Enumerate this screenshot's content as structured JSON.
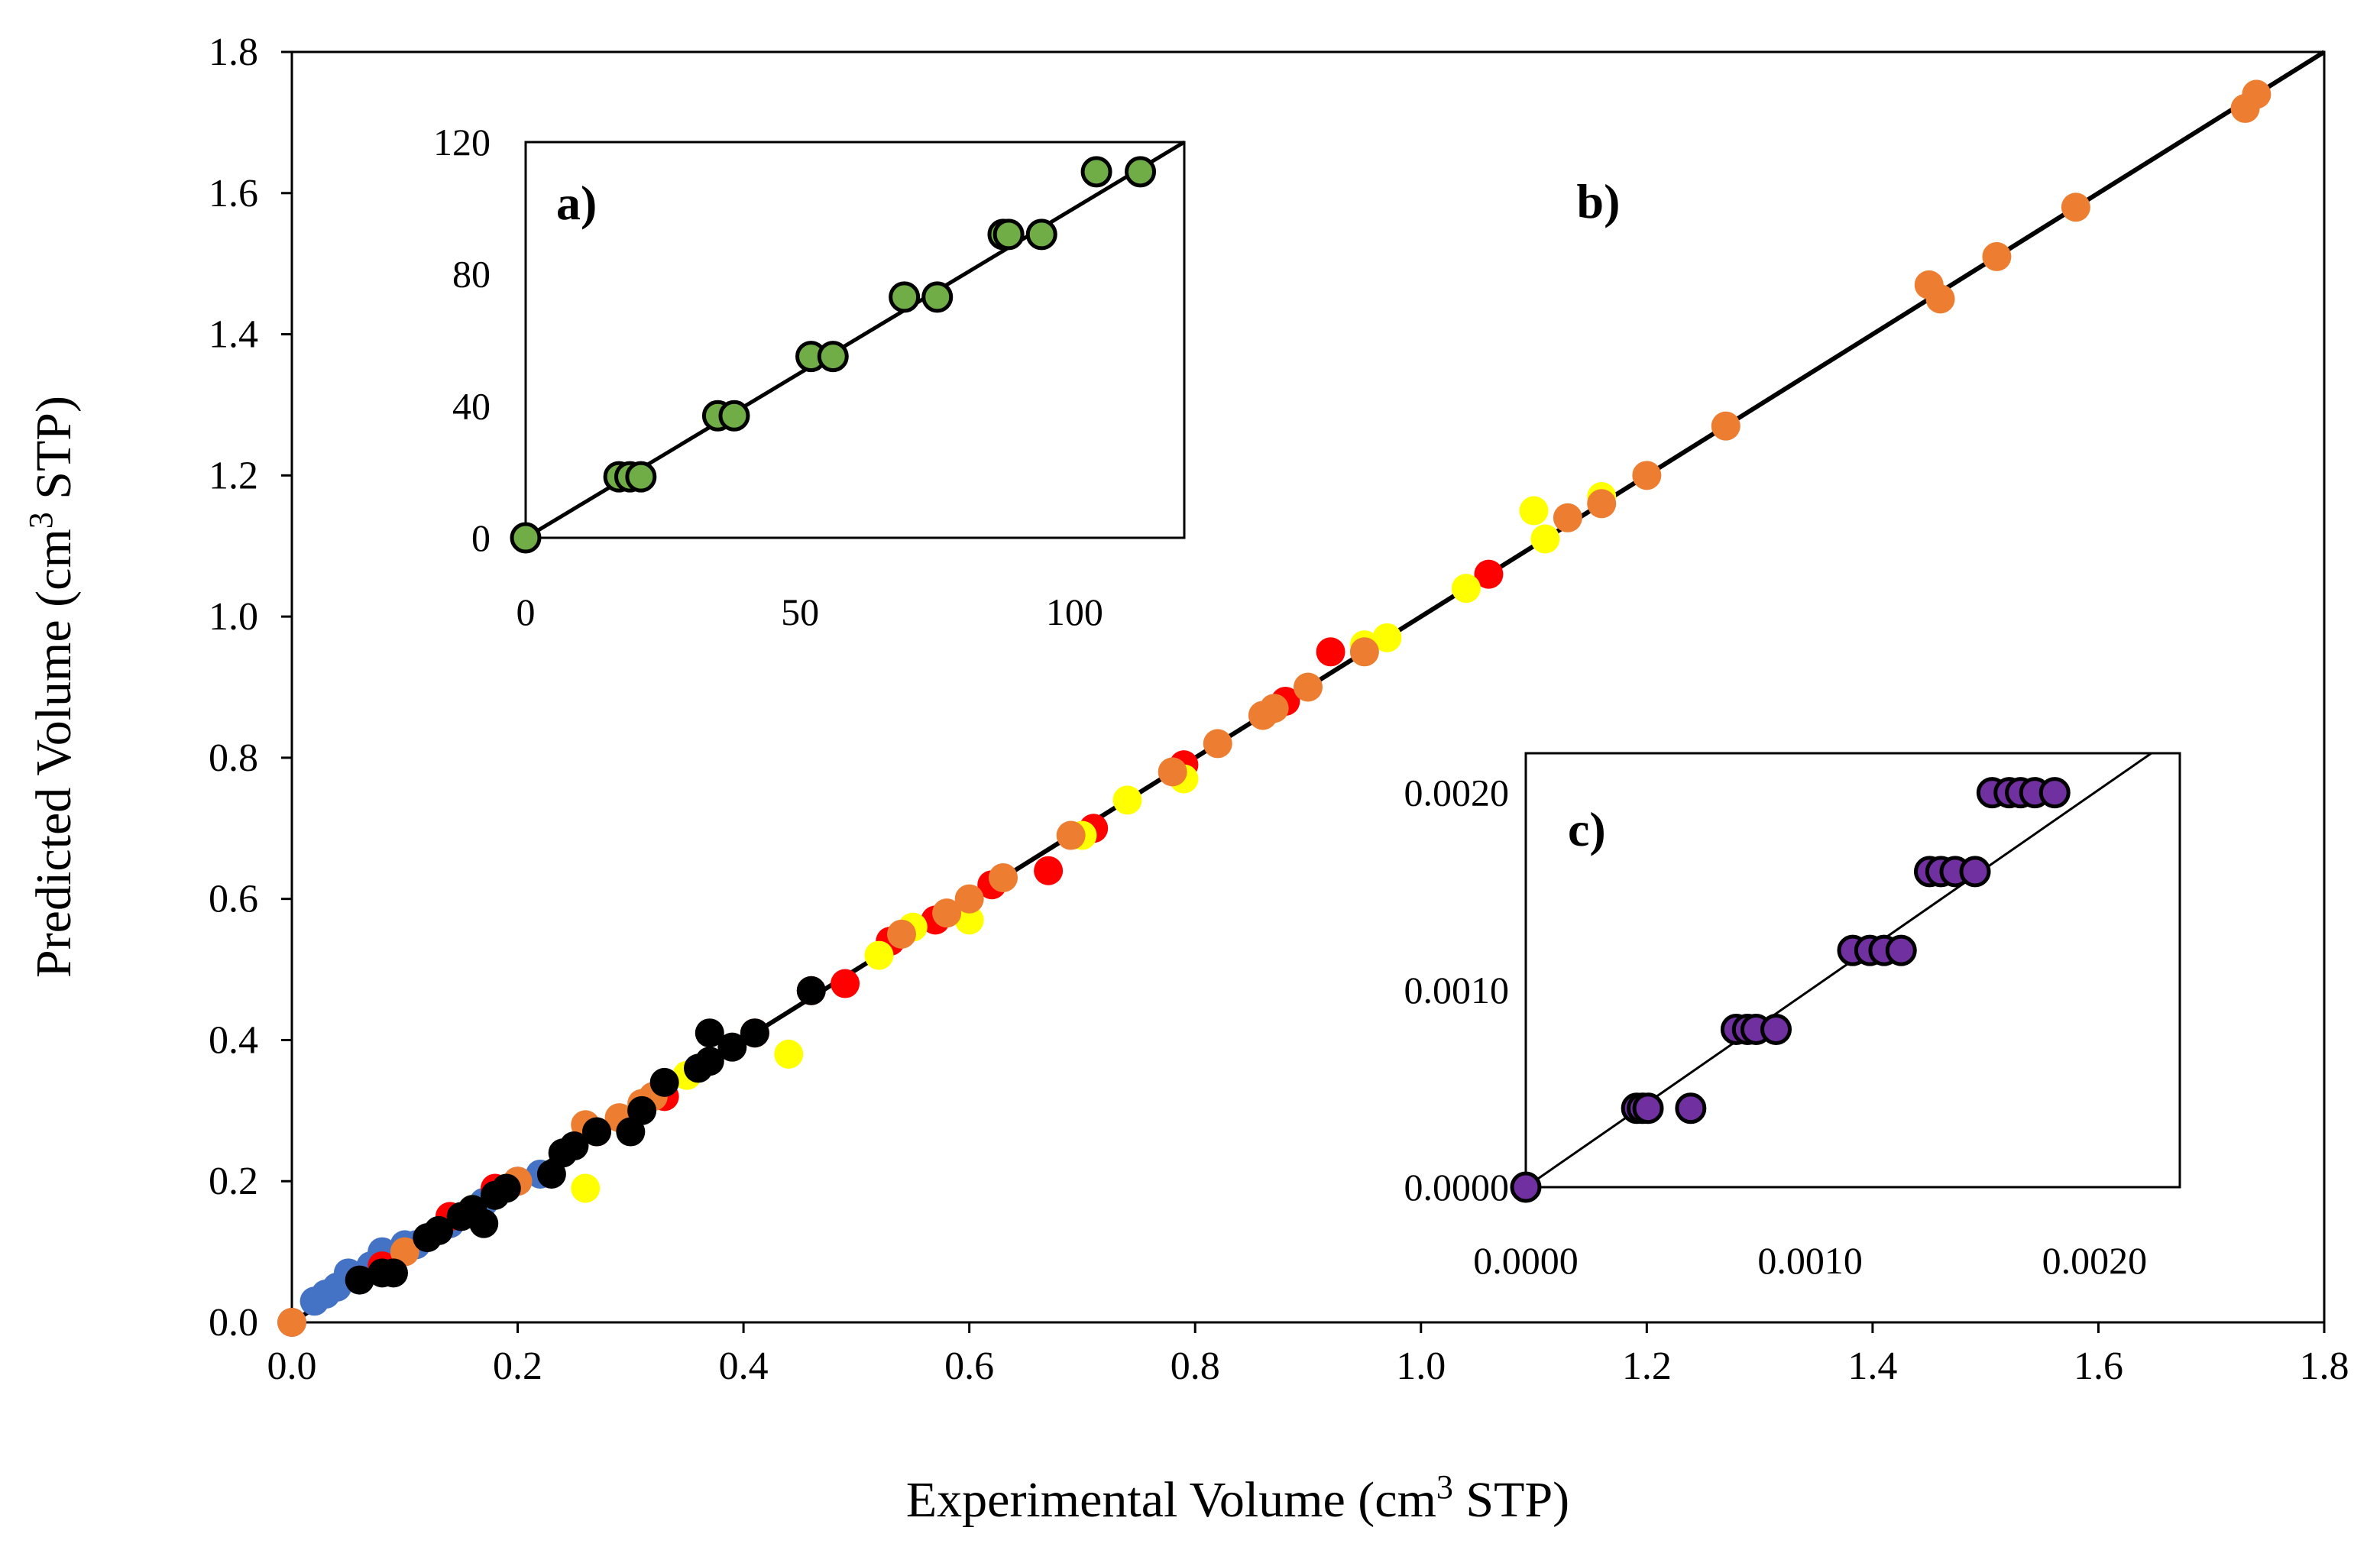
{
  "chart_data": [
    {
      "id": "main",
      "type": "scatter",
      "panel_label": "b)",
      "xlabel_prefix": "Experimental Volume (cm",
      "xlabel_sup": "3",
      "xlabel_suffix": " STP)",
      "ylabel_prefix": "Predicted Volume (cm",
      "ylabel_sup": "3",
      "ylabel_suffix": " STP)",
      "xlim": [
        0,
        1.8
      ],
      "ylim": [
        0,
        1.8
      ],
      "xticks": [
        "0.0",
        "0.2",
        "0.4",
        "0.6",
        "0.8",
        "1.0",
        "1.2",
        "1.4",
        "1.6",
        "1.8"
      ],
      "yticks": [
        "0.0",
        "0.2",
        "0.4",
        "0.6",
        "0.8",
        "1.0",
        "1.2",
        "1.4",
        "1.6",
        "1.8"
      ],
      "reference_line": "y = x",
      "series": [
        {
          "name": "blue",
          "color": "#4472c4",
          "points": [
            [
              0.0,
              0.0
            ],
            [
              0.02,
              0.03
            ],
            [
              0.03,
              0.04
            ],
            [
              0.04,
              0.05
            ],
            [
              0.05,
              0.07
            ],
            [
              0.06,
              0.06
            ],
            [
              0.07,
              0.08
            ],
            [
              0.08,
              0.1
            ],
            [
              0.09,
              0.09
            ],
            [
              0.1,
              0.11
            ],
            [
              0.11,
              0.11
            ],
            [
              0.12,
              0.12
            ],
            [
              0.14,
              0.14
            ],
            [
              0.17,
              0.17
            ],
            [
              0.2,
              0.2
            ],
            [
              0.22,
              0.21
            ]
          ]
        },
        {
          "name": "red",
          "color": "#ff0000",
          "points": [
            [
              0.08,
              0.08
            ],
            [
              0.14,
              0.15
            ],
            [
              0.18,
              0.19
            ],
            [
              0.27,
              0.27
            ],
            [
              0.33,
              0.32
            ],
            [
              0.41,
              0.41
            ],
            [
              0.46,
              0.47
            ],
            [
              0.49,
              0.48
            ],
            [
              0.53,
              0.54
            ],
            [
              0.57,
              0.57
            ],
            [
              0.62,
              0.62
            ],
            [
              0.67,
              0.64
            ],
            [
              0.71,
              0.7
            ],
            [
              0.79,
              0.79
            ],
            [
              0.88,
              0.88
            ],
            [
              0.92,
              0.95
            ],
            [
              1.06,
              1.06
            ]
          ]
        },
        {
          "name": "yellow",
          "color": "#ffff00",
          "points": [
            [
              0.16,
              0.16
            ],
            [
              0.26,
              0.19
            ],
            [
              0.35,
              0.35
            ],
            [
              0.44,
              0.38
            ],
            [
              0.52,
              0.52
            ],
            [
              0.55,
              0.56
            ],
            [
              0.6,
              0.57
            ],
            [
              0.7,
              0.69
            ],
            [
              0.74,
              0.74
            ],
            [
              0.79,
              0.77
            ],
            [
              0.95,
              0.96
            ],
            [
              0.97,
              0.97
            ],
            [
              1.04,
              1.04
            ],
            [
              1.1,
              1.15
            ],
            [
              1.11,
              1.11
            ],
            [
              1.16,
              1.17
            ]
          ]
        },
        {
          "name": "orange",
          "color": "#ed7d31",
          "points": [
            [
              0.0,
              0.0
            ],
            [
              0.1,
              0.1
            ],
            [
              0.2,
              0.2
            ],
            [
              0.26,
              0.28
            ],
            [
              0.29,
              0.29
            ],
            [
              0.31,
              0.31
            ],
            [
              0.32,
              0.32
            ],
            [
              0.41,
              0.41
            ],
            [
              0.54,
              0.55
            ],
            [
              0.58,
              0.58
            ],
            [
              0.6,
              0.6
            ],
            [
              0.63,
              0.63
            ],
            [
              0.69,
              0.69
            ],
            [
              0.78,
              0.78
            ],
            [
              0.82,
              0.82
            ],
            [
              0.86,
              0.86
            ],
            [
              0.87,
              0.87
            ],
            [
              0.9,
              0.9
            ],
            [
              0.95,
              0.95
            ],
            [
              1.13,
              1.14
            ],
            [
              1.16,
              1.16
            ],
            [
              1.2,
              1.2
            ],
            [
              1.27,
              1.27
            ],
            [
              1.45,
              1.47
            ],
            [
              1.46,
              1.45
            ],
            [
              1.51,
              1.51
            ],
            [
              1.58,
              1.58
            ],
            [
              1.73,
              1.72
            ],
            [
              1.74,
              1.74
            ]
          ]
        },
        {
          "name": "black",
          "color": "#000000",
          "points": [
            [
              0.06,
              0.06
            ],
            [
              0.08,
              0.07
            ],
            [
              0.09,
              0.07
            ],
            [
              0.12,
              0.12
            ],
            [
              0.13,
              0.13
            ],
            [
              0.15,
              0.15
            ],
            [
              0.16,
              0.16
            ],
            [
              0.17,
              0.14
            ],
            [
              0.18,
              0.18
            ],
            [
              0.19,
              0.19
            ],
            [
              0.23,
              0.21
            ],
            [
              0.24,
              0.24
            ],
            [
              0.25,
              0.25
            ],
            [
              0.27,
              0.27
            ],
            [
              0.3,
              0.27
            ],
            [
              0.31,
              0.3
            ],
            [
              0.33,
              0.34
            ],
            [
              0.36,
              0.36
            ],
            [
              0.37,
              0.37
            ],
            [
              0.37,
              0.41
            ],
            [
              0.39,
              0.39
            ],
            [
              0.41,
              0.41
            ],
            [
              0.46,
              0.47
            ]
          ]
        }
      ]
    },
    {
      "id": "inset-a",
      "type": "scatter",
      "panel_label": "a)",
      "xlim": [
        0,
        120
      ],
      "ylim": [
        0,
        120
      ],
      "xticks": [
        "0",
        "50",
        "100"
      ],
      "yticks": [
        "0",
        "40",
        "80",
        "120"
      ],
      "reference_line": "y = x",
      "series": [
        {
          "name": "green",
          "color": "#70ad47",
          "points": [
            [
              0,
              0
            ],
            [
              17,
              18.5
            ],
            [
              19,
              18.5
            ],
            [
              21,
              18.5
            ],
            [
              35,
              37
            ],
            [
              38,
              37
            ],
            [
              52,
              55
            ],
            [
              56,
              55
            ],
            [
              69,
              73
            ],
            [
              75,
              73
            ],
            [
              87,
              92
            ],
            [
              88,
              92
            ],
            [
              94,
              92
            ],
            [
              104,
              111
            ],
            [
              112,
              111
            ]
          ]
        }
      ]
    },
    {
      "id": "inset-c",
      "type": "scatter",
      "panel_label": "c)",
      "xlim": [
        0,
        0.0023
      ],
      "ylim": [
        0,
        0.0022
      ],
      "xticks": [
        "0.0000",
        "0.0010",
        "0.0020"
      ],
      "yticks": [
        "0.0000",
        "0.0010",
        "0.0020"
      ],
      "reference_line": "y = x",
      "series": [
        {
          "name": "purple",
          "color": "#7030a0",
          "points": [
            [
              0.0,
              0.0
            ],
            [
              0.00039,
              0.0004
            ],
            [
              0.00041,
              0.0004
            ],
            [
              0.00043,
              0.0004
            ],
            [
              0.00058,
              0.0004
            ],
            [
              0.00074,
              0.0008
            ],
            [
              0.00078,
              0.0008
            ],
            [
              0.00081,
              0.0008
            ],
            [
              0.00088,
              0.0008
            ],
            [
              0.00115,
              0.0012
            ],
            [
              0.00121,
              0.0012
            ],
            [
              0.00126,
              0.0012
            ],
            [
              0.00132,
              0.0012
            ],
            [
              0.00142,
              0.0016
            ],
            [
              0.00146,
              0.0016
            ],
            [
              0.00151,
              0.0016
            ],
            [
              0.00158,
              0.0016
            ],
            [
              0.00164,
              0.002
            ],
            [
              0.0017,
              0.002
            ],
            [
              0.00174,
              0.002
            ],
            [
              0.00179,
              0.002
            ],
            [
              0.00186,
              0.002
            ]
          ]
        }
      ]
    }
  ]
}
